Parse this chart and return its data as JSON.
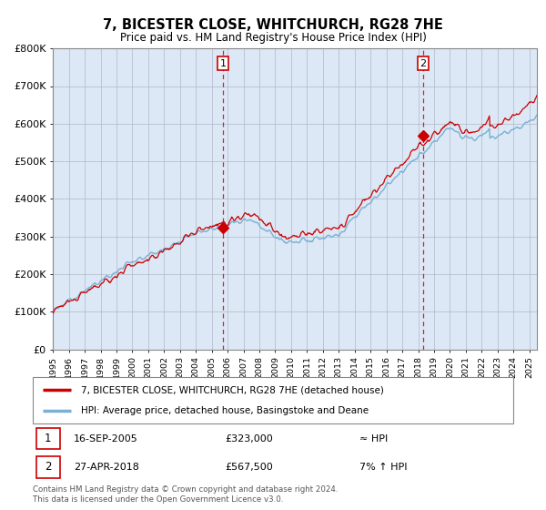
{
  "title": "7, BICESTER CLOSE, WHITCHURCH, RG28 7HE",
  "subtitle": "Price paid vs. HM Land Registry's House Price Index (HPI)",
  "ylabel_ticks": [
    "£0",
    "£100K",
    "£200K",
    "£300K",
    "£400K",
    "£500K",
    "£600K",
    "£700K",
    "£800K"
  ],
  "ylim": [
    0,
    800000
  ],
  "xlim_start": 1995.0,
  "xlim_end": 2025.5,
  "sale1_date": 2005.71,
  "sale1_price": 323000,
  "sale2_date": 2018.32,
  "sale2_price": 567500,
  "hpi_line_color": "#7ab0d4",
  "price_line_color": "#cc0000",
  "sale_point_color": "#cc0000",
  "legend1": "7, BICESTER CLOSE, WHITCHURCH, RG28 7HE (detached house)",
  "legend2": "HPI: Average price, detached house, Basingstoke and Deane",
  "table_row1": [
    "1",
    "16-SEP-2005",
    "£323,000",
    "≈ HPI"
  ],
  "table_row2": [
    "2",
    "27-APR-2018",
    "£567,500",
    "7% ↑ HPI"
  ],
  "footnote": "Contains HM Land Registry data © Crown copyright and database right 2024.\nThis data is licensed under the Open Government Licence v3.0.",
  "background_color": "#ffffff",
  "chart_bg_color": "#dce8f5",
  "grid_color": "#b0b8c8"
}
